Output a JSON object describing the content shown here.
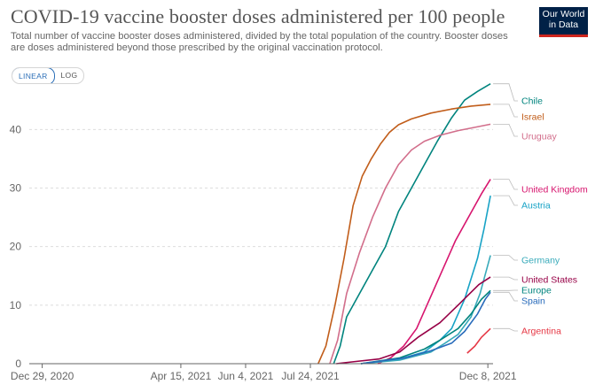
{
  "title": "COVID-19 vaccine booster doses administered per 100 people",
  "subtitle": "Total number of vaccine booster doses administered, divided by the total population of the country. Booster doses are doses administered beyond those prescribed by the original vaccination protocol.",
  "logo": {
    "line1": "Our World",
    "line2": "in Data"
  },
  "controls": {
    "linear_label": "LINEAR",
    "log_label": "LOG",
    "selected": "LINEAR"
  },
  "chart_data": {
    "type": "line",
    "title": "COVID-19 vaccine booster doses administered per 100 people",
    "xlabel": "",
    "ylabel": "",
    "x_domain": [
      "2020-12-19",
      "2021-12-12"
    ],
    "ylim": [
      0,
      47
    ],
    "yticks": [
      0,
      10,
      20,
      30,
      40
    ],
    "xticks": [
      {
        "date": "2020-12-29",
        "label": "Dec 29, 2020"
      },
      {
        "date": "2021-04-15",
        "label": "Apr 15, 2021"
      },
      {
        "date": "2021-06-04",
        "label": "Jun 4, 2021"
      },
      {
        "date": "2021-07-24",
        "label": "Jul 24, 2021"
      },
      {
        "date": "2021-12-08",
        "label": "Dec 8, 2021"
      }
    ],
    "grid": true,
    "legend": "right, inline labels",
    "series": [
      {
        "name": "Chile",
        "color": "#00847e",
        "points": [
          [
            "2021-08-11",
            0
          ],
          [
            "2021-08-16",
            3
          ],
          [
            "2021-08-21",
            8
          ],
          [
            "2021-08-31",
            12
          ],
          [
            "2021-09-10",
            16
          ],
          [
            "2021-09-20",
            20
          ],
          [
            "2021-09-30",
            26
          ],
          [
            "2021-10-10",
            30
          ],
          [
            "2021-10-20",
            34
          ],
          [
            "2021-10-30",
            38
          ],
          [
            "2021-11-10",
            42
          ],
          [
            "2021-11-20",
            45
          ],
          [
            "2021-11-30",
            46.5
          ],
          [
            "2021-12-10",
            47.8
          ]
        ]
      },
      {
        "name": "Israel",
        "color": "#c15d1a",
        "points": [
          [
            "2021-07-30",
            0
          ],
          [
            "2021-08-05",
            3
          ],
          [
            "2021-08-12",
            10
          ],
          [
            "2021-08-19",
            18
          ],
          [
            "2021-08-26",
            27
          ],
          [
            "2021-09-02",
            32
          ],
          [
            "2021-09-09",
            35
          ],
          [
            "2021-09-16",
            37.5
          ],
          [
            "2021-09-23",
            39.5
          ],
          [
            "2021-09-30",
            40.8
          ],
          [
            "2021-10-10",
            41.8
          ],
          [
            "2021-10-25",
            42.8
          ],
          [
            "2021-11-10",
            43.5
          ],
          [
            "2021-11-25",
            44
          ],
          [
            "2021-12-10",
            44.3
          ]
        ]
      },
      {
        "name": "Uruguay",
        "color": "#d26e8b",
        "points": [
          [
            "2021-08-08",
            0
          ],
          [
            "2021-08-14",
            4
          ],
          [
            "2021-08-21",
            12
          ],
          [
            "2021-08-31",
            19
          ],
          [
            "2021-09-10",
            25
          ],
          [
            "2021-09-20",
            30
          ],
          [
            "2021-09-30",
            34
          ],
          [
            "2021-10-10",
            36.5
          ],
          [
            "2021-10-20",
            38
          ],
          [
            "2021-11-01",
            39
          ],
          [
            "2021-11-15",
            39.8
          ],
          [
            "2021-12-01",
            40.5
          ],
          [
            "2021-12-10",
            40.9
          ]
        ]
      },
      {
        "name": "United Kingdom",
        "color": "#d7156e",
        "points": [
          [
            "2021-09-14",
            0
          ],
          [
            "2021-09-24",
            1
          ],
          [
            "2021-10-04",
            3
          ],
          [
            "2021-10-14",
            6
          ],
          [
            "2021-10-24",
            11
          ],
          [
            "2021-11-03",
            16
          ],
          [
            "2021-11-13",
            21
          ],
          [
            "2021-11-23",
            25
          ],
          [
            "2021-12-03",
            29
          ],
          [
            "2021-12-10",
            31.5
          ]
        ]
      },
      {
        "name": "Austria",
        "color": "#18a3c6",
        "points": [
          [
            "2021-09-01",
            0
          ],
          [
            "2021-10-01",
            0.8
          ],
          [
            "2021-10-20",
            2
          ],
          [
            "2021-11-01",
            4
          ],
          [
            "2021-11-10",
            6
          ],
          [
            "2021-11-20",
            11
          ],
          [
            "2021-11-30",
            18
          ],
          [
            "2021-12-05",
            23
          ],
          [
            "2021-12-10",
            28.7
          ]
        ]
      },
      {
        "name": "Germany",
        "color": "#38aaba",
        "points": [
          [
            "2021-09-01",
            0
          ],
          [
            "2021-10-01",
            0.6
          ],
          [
            "2021-10-25",
            2
          ],
          [
            "2021-11-05",
            3.5
          ],
          [
            "2021-11-15",
            5
          ],
          [
            "2021-11-25",
            8
          ],
          [
            "2021-12-02",
            12
          ],
          [
            "2021-12-10",
            18.5
          ]
        ]
      },
      {
        "name": "United States",
        "color": "#970046",
        "points": [
          [
            "2021-08-13",
            0
          ],
          [
            "2021-08-25",
            0.3
          ],
          [
            "2021-09-15",
            0.8
          ],
          [
            "2021-10-01",
            2
          ],
          [
            "2021-10-15",
            4.5
          ],
          [
            "2021-11-01",
            7
          ],
          [
            "2021-11-15",
            10
          ],
          [
            "2021-12-01",
            13.5
          ],
          [
            "2021-12-10",
            14.8
          ]
        ]
      },
      {
        "name": "Europe",
        "color": "#00847e",
        "points": [
          [
            "2021-09-01",
            0
          ],
          [
            "2021-10-01",
            1
          ],
          [
            "2021-10-20",
            2.5
          ],
          [
            "2021-11-01",
            4
          ],
          [
            "2021-11-15",
            6
          ],
          [
            "2021-11-25",
            8.5
          ],
          [
            "2021-12-03",
            11
          ],
          [
            "2021-12-10",
            12.5
          ]
        ]
      },
      {
        "name": "Spain",
        "color": "#286bbb",
        "points": [
          [
            "2021-09-01",
            0
          ],
          [
            "2021-10-05",
            1
          ],
          [
            "2021-10-25",
            2.2
          ],
          [
            "2021-11-10",
            3.5
          ],
          [
            "2021-11-20",
            5.5
          ],
          [
            "2021-11-30",
            8.5
          ],
          [
            "2021-12-06",
            11
          ],
          [
            "2021-12-10",
            12.2
          ]
        ]
      },
      {
        "name": "Argentina",
        "color": "#e63946",
        "points": [
          [
            "2021-11-22",
            1.8
          ],
          [
            "2021-11-28",
            3
          ],
          [
            "2021-12-03",
            4.5
          ],
          [
            "2021-12-10",
            6
          ]
        ]
      }
    ]
  }
}
